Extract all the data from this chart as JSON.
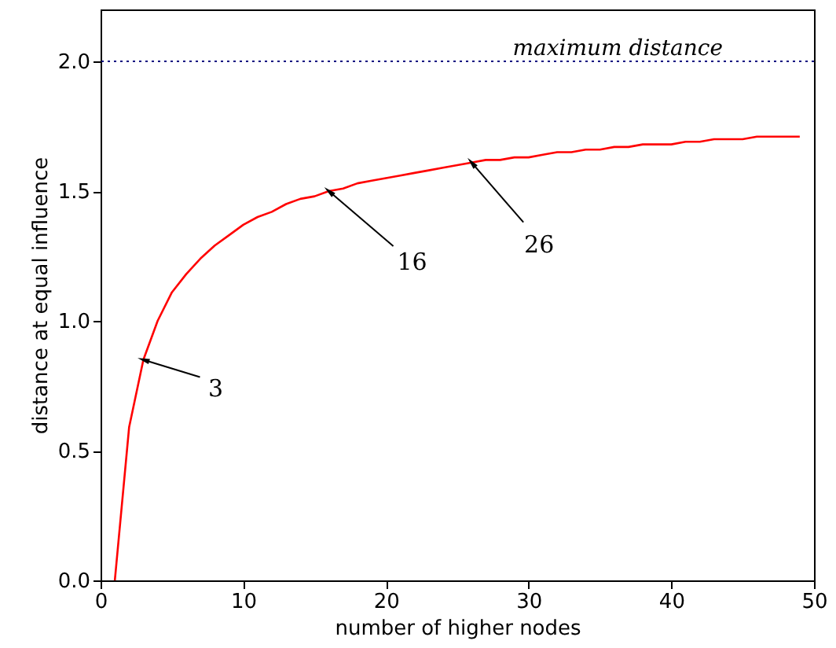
{
  "chart_data": {
    "type": "line",
    "xlabel": "number of higher nodes",
    "ylabel": "distance at equal influence",
    "x": [
      1,
      2,
      3,
      4,
      5,
      6,
      7,
      8,
      9,
      10,
      11,
      12,
      13,
      14,
      15,
      16,
      17,
      18,
      19,
      20,
      21,
      22,
      23,
      24,
      25,
      26,
      27,
      28,
      29,
      30,
      31,
      32,
      33,
      34,
      35,
      36,
      37,
      38,
      39,
      40,
      41,
      42,
      43,
      44,
      45,
      46,
      47,
      48,
      49
    ],
    "series": [
      {
        "color": "#ff0000",
        "values": [
          0,
          0.59,
          0.85,
          1.0,
          1.11,
          1.18,
          1.24,
          1.29,
          1.33,
          1.37,
          1.4,
          1.42,
          1.45,
          1.47,
          1.48,
          1.5,
          1.51,
          1.53,
          1.54,
          1.55,
          1.56,
          1.57,
          1.58,
          1.59,
          1.6,
          1.61,
          1.62,
          1.62,
          1.63,
          1.63,
          1.64,
          1.65,
          1.65,
          1.66,
          1.66,
          1.67,
          1.67,
          1.68,
          1.68,
          1.68,
          1.69,
          1.69,
          1.7,
          1.7,
          1.7,
          1.71,
          1.71,
          1.71,
          1.71
        ]
      }
    ],
    "xlim": [
      0,
      50
    ],
    "xticks": [
      0,
      10,
      20,
      30,
      40,
      50
    ],
    "ylim": [
      0,
      2.2
    ],
    "yticks": [
      {
        "value": 0,
        "label": "0.0"
      },
      {
        "value": 0.5,
        "label": "0.5"
      },
      {
        "value": 1,
        "label": "1.0"
      },
      {
        "value": 1.5,
        "label": "1.5"
      },
      {
        "value": 2,
        "label": "2.0"
      }
    ],
    "ref_lines": [
      {
        "axis": "y",
        "value": 2,
        "label": "maximum distance",
        "color": "#000080",
        "line_style": "dotted"
      }
    ],
    "annotations": [
      {
        "text": "3",
        "x": 3,
        "y": 0.85
      },
      {
        "text": "16",
        "x": 16,
        "y": 1.5
      },
      {
        "text": "26",
        "x": 26,
        "y": 1.61
      }
    ],
    "grid": false,
    "marker": "none"
  }
}
